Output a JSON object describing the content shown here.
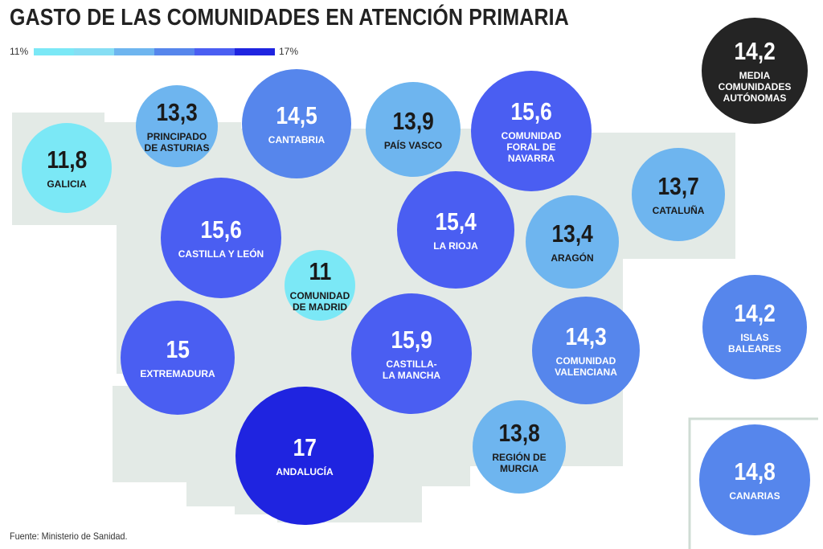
{
  "title": "GASTO DE LAS COMUNIDADES EN ATENCIÓN PRIMARIA",
  "legend": {
    "min_label": "11%",
    "max_label": "17%",
    "colors": [
      "#7be8f6",
      "#86def4",
      "#6eb5ef",
      "#5686ec",
      "#4a5ef2",
      "#1f24e0"
    ]
  },
  "source": "Fuente: Ministerio de Sanidad.",
  "colors": {
    "map_land": "#e3eae6",
    "average_bubble": "#242424",
    "canarias_frame": "#cfdcd4"
  },
  "chart_data": {
    "type": "bubble",
    "title": "GASTO DE LAS COMUNIDADES EN ATENCIÓN PRIMARIA",
    "unit": "%",
    "scale": [
      11,
      17
    ],
    "average": {
      "label": "MEDIA\nCOMUNIDADES\nAUTÓNOMAS",
      "value": 14.2,
      "display": "14,2"
    },
    "points": [
      {
        "name": "GALICIA",
        "value": 11.8,
        "display": "11,8"
      },
      {
        "name": "PRINCIPADO\nDE ASTURIAS",
        "value": 13.3,
        "display": "13,3"
      },
      {
        "name": "CANTABRIA",
        "value": 14.5,
        "display": "14,5"
      },
      {
        "name": "PAÍS VASCO",
        "value": 13.9,
        "display": "13,9"
      },
      {
        "name": "COMUNIDAD\nFORAL DE\nNAVARRA",
        "value": 15.6,
        "display": "15,6"
      },
      {
        "name": "CATALUÑA",
        "value": 13.7,
        "display": "13,7"
      },
      {
        "name": "CASTILLA Y LEÓN",
        "value": 15.6,
        "display": "15,6"
      },
      {
        "name": "LA RIOJA",
        "value": 15.4,
        "display": "15,4"
      },
      {
        "name": "ARAGÓN",
        "value": 13.4,
        "display": "13,4"
      },
      {
        "name": "COMUNIDAD\nDE MADRID",
        "value": 11,
        "display": "11"
      },
      {
        "name": "EXTREMADURA",
        "value": 15,
        "display": "15"
      },
      {
        "name": "CASTILLA-\nLA MANCHA",
        "value": 15.9,
        "display": "15,9"
      },
      {
        "name": "COMUNIDAD\nVALENCIANA",
        "value": 14.3,
        "display": "14,3"
      },
      {
        "name": "ISLAS\nBALEARES",
        "value": 14.2,
        "display": "14,2"
      },
      {
        "name": "ANDALUCÍA",
        "value": 17,
        "display": "17"
      },
      {
        "name": "REGIÓN DE\nMURCIA",
        "value": 13.8,
        "display": "13,8"
      },
      {
        "name": "CANARIAS",
        "value": 14.8,
        "display": "14,8"
      }
    ]
  }
}
